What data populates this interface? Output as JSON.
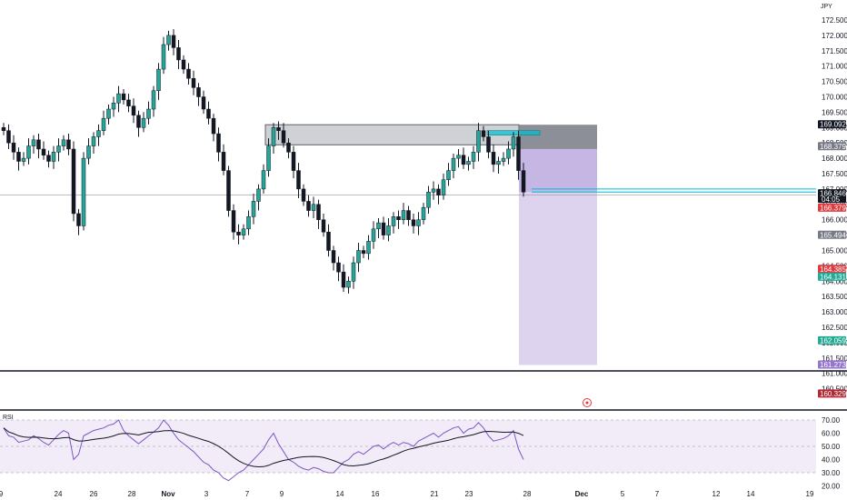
{
  "currency_label": "JPY",
  "rsi_label": "RSI",
  "colors": {
    "up": "#26a69a",
    "down": "#131722",
    "wick": "#131722",
    "zone_fill": "#9598a1",
    "zone_line": "#5d606b",
    "teal_line": "#00bcd4",
    "risk_fill": "#b39ddb",
    "rsi_line": "#7e57c2",
    "rsi_ma": "#131722",
    "rsi_band": "#ede7f6",
    "badge_dark": "#131722",
    "badge_gray": "#787b86",
    "badge_red": "#e0393e",
    "badge_green": "#22ab94",
    "badge_purple": "#9575cd",
    "badge_maroon": "#b22833",
    "target_circle": "#e0393e"
  },
  "axis": {
    "price_ticks": [
      "172.500",
      "172.000",
      "171.500",
      "171.000",
      "170.500",
      "170.000",
      "169.500",
      "169.000",
      "168.500",
      "168.000",
      "167.500",
      "167.000",
      "166.500",
      "166.000",
      "165.500",
      "165.000",
      "164.500",
      "164.000",
      "163.500",
      "163.000",
      "162.500",
      "162.000",
      "161.500",
      "161.000",
      "160.500"
    ],
    "rsi_ticks": [
      "70.00",
      "60.00",
      "50.00",
      "40.00",
      "30.00",
      "20.00"
    ],
    "date_ticks": [
      "9",
      "24",
      "26",
      "28",
      "Nov",
      "3",
      "7",
      "9",
      "14",
      "16",
      "21",
      "23",
      "28",
      "Dec",
      "5",
      "7",
      "12",
      "14",
      "19"
    ]
  },
  "price_badges": [
    {
      "text": "169.092",
      "price": 169.092,
      "kind": "dark"
    },
    {
      "text": "168.379",
      "price": 168.379,
      "kind": "gray"
    },
    {
      "text": "166.846",
      "price": 166.846,
      "kind": "dark",
      "sub": "04:05"
    },
    {
      "text": "166.379",
      "price": 166.379,
      "kind": "red"
    },
    {
      "text": "165.494",
      "price": 165.494,
      "kind": "gray"
    },
    {
      "text": "164.385",
      "price": 164.385,
      "kind": "red"
    },
    {
      "text": "164.131",
      "price": 164.131,
      "kind": "green"
    },
    {
      "text": "162.059",
      "price": 162.059,
      "kind": "green"
    },
    {
      "text": "161.273",
      "price": 161.273,
      "kind": "purple"
    },
    {
      "text": "160.329",
      "price": 160.329,
      "kind": "maroon"
    }
  ],
  "chart_data": {
    "type": "candlestick",
    "instrument_currency": "JPY",
    "y_axis_range": [
      160.2,
      172.8
    ],
    "x_axis_date_labels": [
      "9",
      "24",
      "26",
      "28",
      "Nov",
      "3",
      "7",
      "9",
      "14",
      "16",
      "21",
      "23",
      "28",
      "Dec",
      "5",
      "7",
      "12",
      "14",
      "19"
    ],
    "closes_approx": [
      168.9,
      168.5,
      168.2,
      167.9,
      168.0,
      168.4,
      168.6,
      168.3,
      168.1,
      167.9,
      168.2,
      168.4,
      168.6,
      168.3,
      166.2,
      165.8,
      168.0,
      168.4,
      168.7,
      168.9,
      169.3,
      169.6,
      169.8,
      170.1,
      169.9,
      169.7,
      169.4,
      169.0,
      169.3,
      169.6,
      170.2,
      170.9,
      171.7,
      172.0,
      171.6,
      171.2,
      170.9,
      170.6,
      170.3,
      170.0,
      169.6,
      169.3,
      168.8,
      168.2,
      167.6,
      166.3,
      165.6,
      165.5,
      165.7,
      166.1,
      166.6,
      167.0,
      167.6,
      168.4,
      169.0,
      168.9,
      168.5,
      168.2,
      167.6,
      167.0,
      166.6,
      166.3,
      166.5,
      166.0,
      165.6,
      165.0,
      164.6,
      164.3,
      163.8,
      164.0,
      164.6,
      165.0,
      164.9,
      165.3,
      165.7,
      165.9,
      165.5,
      165.8,
      166.1,
      166.0,
      166.3,
      166.0,
      165.8,
      166.0,
      166.4,
      166.9,
      167.0,
      166.8,
      167.3,
      167.6,
      168.0,
      168.1,
      167.8,
      167.9,
      168.2,
      168.9,
      168.7,
      168.2,
      167.8,
      167.9,
      168.0,
      168.3,
      168.7,
      167.6,
      166.9
    ],
    "rsi_approx": [
      64,
      58,
      57,
      53,
      54,
      55,
      58,
      56,
      53,
      51,
      55,
      59,
      62,
      60,
      40,
      44,
      58,
      60,
      62,
      63,
      64,
      66,
      67,
      70,
      62,
      58,
      55,
      52,
      55,
      58,
      61,
      64,
      70,
      66,
      60,
      55,
      52,
      49,
      46,
      42,
      38,
      36,
      32,
      30,
      26,
      24,
      27,
      30,
      32,
      36,
      40,
      44,
      48,
      55,
      60,
      52,
      46,
      40,
      38,
      35,
      33,
      32,
      34,
      33,
      31,
      30,
      30,
      34,
      38,
      40,
      44,
      46,
      44,
      47,
      50,
      51,
      48,
      51,
      53,
      51,
      53,
      52,
      50,
      54,
      56,
      58,
      60,
      57,
      60,
      62,
      64,
      65,
      60,
      63,
      64,
      68,
      64,
      58,
      54,
      55,
      56,
      58,
      62,
      48,
      40
    ],
    "resistance_zone": {
      "top": 169.092,
      "bottom": 168.379
    },
    "entry_price": 166.846,
    "stop_price": 166.379,
    "risk_reward_target": 161.273,
    "levels": [
      169.092,
      168.379,
      166.846,
      166.379,
      165.494,
      164.385,
      164.131,
      162.059,
      161.273,
      160.329
    ],
    "rsi_range": [
      20,
      75
    ],
    "rsi_levels": [
      70,
      50,
      30
    ]
  }
}
